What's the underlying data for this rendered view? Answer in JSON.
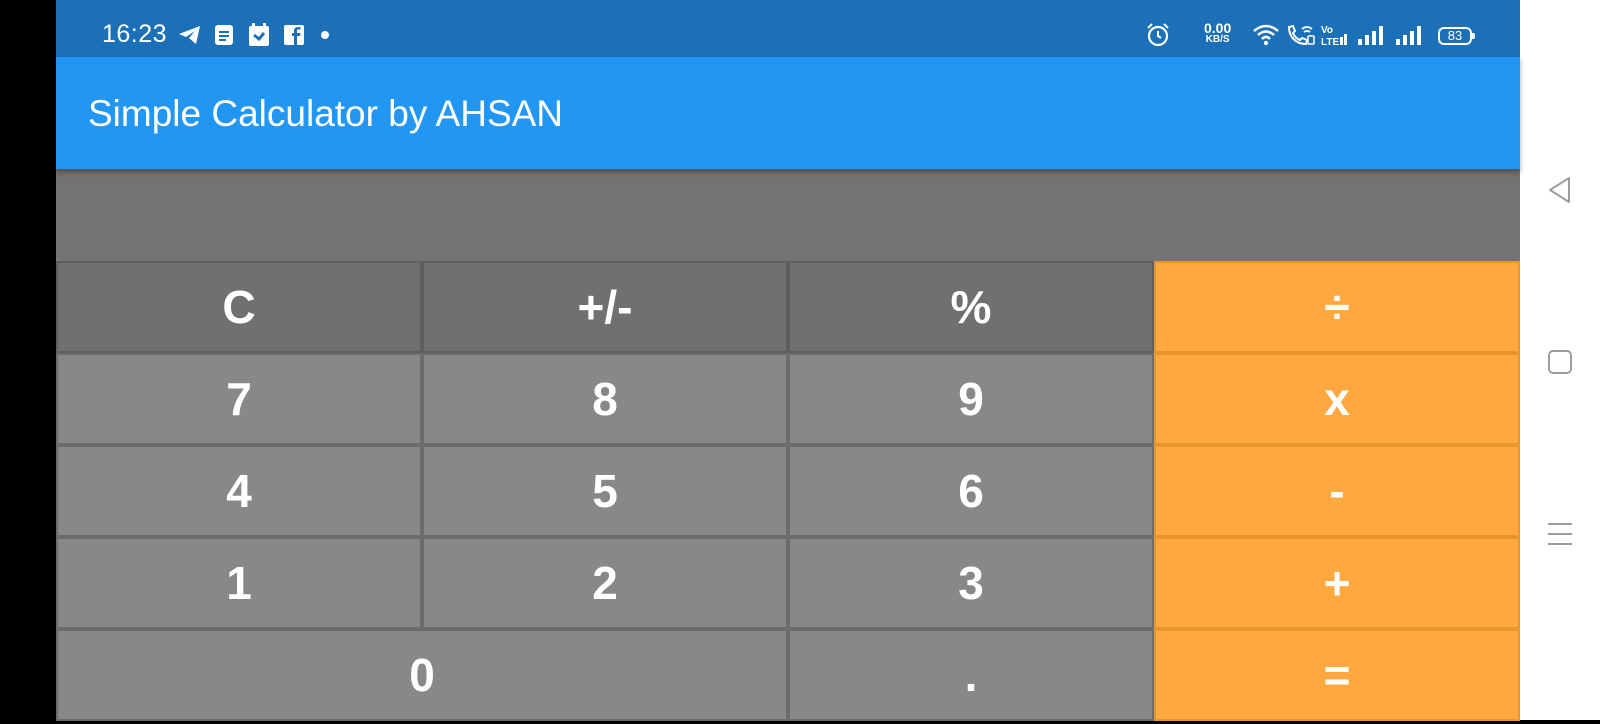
{
  "status_bar": {
    "time": "16:23",
    "notification_icons": [
      "telegram-icon",
      "docs-icon",
      "calendar-icon",
      "facebook-icon",
      "more-dot-icon"
    ],
    "network_speed_value": "0.00",
    "network_speed_unit": "KB/S",
    "right_icons": [
      "alarm-icon",
      "wifi-icon",
      "wifi-calling-icon",
      "volte-icon",
      "signal-icon",
      "signal-icon"
    ],
    "battery_level": "83"
  },
  "app_bar": {
    "title": "Simple Calculator by AHSAN",
    "color": "#2196F3"
  },
  "display": {
    "value": ""
  },
  "keypad": {
    "rows": [
      [
        {
          "label": "C",
          "type": "top"
        },
        {
          "label": "+/-",
          "type": "top"
        },
        {
          "label": "%",
          "type": "top"
        },
        {
          "label": "÷",
          "type": "op"
        }
      ],
      [
        {
          "label": "7",
          "type": "num"
        },
        {
          "label": "8",
          "type": "num"
        },
        {
          "label": "9",
          "type": "num"
        },
        {
          "label": "x",
          "type": "op"
        }
      ],
      [
        {
          "label": "4",
          "type": "num"
        },
        {
          "label": "5",
          "type": "num"
        },
        {
          "label": "6",
          "type": "num"
        },
        {
          "label": "-",
          "type": "op"
        }
      ],
      [
        {
          "label": "1",
          "type": "num"
        },
        {
          "label": "2",
          "type": "num"
        },
        {
          "label": "3",
          "type": "num"
        },
        {
          "label": "+",
          "type": "op"
        }
      ],
      [
        {
          "label": "0",
          "type": "num",
          "span": 2
        },
        {
          "label": ".",
          "type": "num"
        },
        {
          "label": "=",
          "type": "op"
        }
      ]
    ],
    "colors": {
      "top": "#707070",
      "num": "#888888",
      "op": "#FFA83F"
    }
  },
  "nav_bar": {
    "buttons": [
      "back-icon",
      "home-icon",
      "menu-icon"
    ]
  }
}
